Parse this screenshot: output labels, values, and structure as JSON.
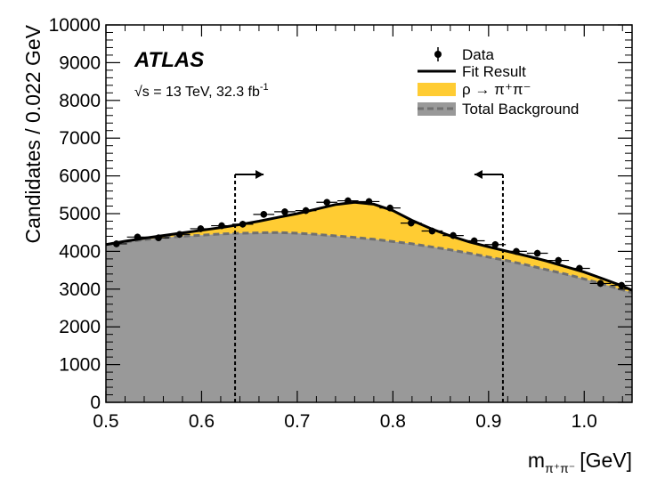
{
  "chart_data": {
    "type": "scatter",
    "experiment": "ATLAS",
    "energy_label": "√s = 13 TeV, 32.3 fb",
    "energy_label_sup": "-1",
    "xlabel_main": "m",
    "xlabel_sub": "π⁺π⁻",
    "xlabel_unit": "[GeV]",
    "ylabel": "Candidates / 0.022 GeV",
    "xlim": [
      0.5,
      1.05
    ],
    "ylim": [
      0,
      10000
    ],
    "xticks": [
      0.5,
      0.6,
      0.7,
      0.8,
      0.9,
      1.0
    ],
    "xtick_labels": [
      "0.5",
      "0.6",
      "0.7",
      "0.8",
      "0.9",
      "1.0"
    ],
    "yticks": [
      0,
      1000,
      2000,
      3000,
      4000,
      5000,
      6000,
      7000,
      8000,
      9000,
      10000
    ],
    "ytick_labels": [
      "0",
      "1000",
      "2000",
      "3000",
      "4000",
      "5000",
      "6000",
      "7000",
      "8000",
      "9000",
      "10000"
    ],
    "legend": {
      "placement": "top-right",
      "entries": [
        {
          "key": "data",
          "label": "Data"
        },
        {
          "key": "fit",
          "label": "Fit Result"
        },
        {
          "key": "signal",
          "label": "ρ → π⁺π⁻"
        },
        {
          "key": "bkg",
          "label": "Total Background"
        }
      ]
    },
    "colors": {
      "signal": "#ffcc33",
      "background": "#999999",
      "background_line": "#707070",
      "fit": "#000000",
      "data": "#000000"
    },
    "data_points": {
      "x": [
        0.511,
        0.533,
        0.555,
        0.577,
        0.599,
        0.621,
        0.643,
        0.665,
        0.687,
        0.709,
        0.731,
        0.753,
        0.775,
        0.797,
        0.819,
        0.841,
        0.863,
        0.885,
        0.907,
        0.929,
        0.951,
        0.973,
        0.995,
        1.017,
        1.039
      ],
      "y": [
        4200,
        4380,
        4360,
        4450,
        4600,
        4680,
        4720,
        4980,
        5050,
        5080,
        5300,
        5340,
        5320,
        5150,
        4750,
        4540,
        4420,
        4280,
        4180,
        4000,
        3950,
        3760,
        3550,
        3150,
        3100
      ],
      "xerr": 0.011,
      "yerr": 90
    },
    "fit_curve": {
      "x": [
        0.5,
        0.52,
        0.54,
        0.56,
        0.58,
        0.6,
        0.62,
        0.64,
        0.66,
        0.68,
        0.7,
        0.72,
        0.74,
        0.76,
        0.78,
        0.8,
        0.82,
        0.84,
        0.86,
        0.88,
        0.9,
        0.92,
        0.94,
        0.96,
        0.98,
        1.0,
        1.02,
        1.04,
        1.05
      ],
      "y": [
        4180,
        4270,
        4350,
        4420,
        4490,
        4560,
        4630,
        4710,
        4800,
        4900,
        5000,
        5120,
        5240,
        5300,
        5250,
        5080,
        4820,
        4600,
        4410,
        4250,
        4120,
        4000,
        3880,
        3750,
        3600,
        3450,
        3270,
        3080,
        2970
      ]
    },
    "background_curve": {
      "x": [
        0.5,
        0.52,
        0.54,
        0.56,
        0.58,
        0.6,
        0.62,
        0.64,
        0.66,
        0.68,
        0.7,
        0.72,
        0.74,
        0.76,
        0.78,
        0.8,
        0.82,
        0.84,
        0.86,
        0.88,
        0.9,
        0.92,
        0.94,
        0.96,
        0.98,
        1.0,
        1.02,
        1.04,
        1.05
      ],
      "y": [
        4180,
        4250,
        4310,
        4360,
        4400,
        4430,
        4460,
        4480,
        4490,
        4500,
        4480,
        4450,
        4410,
        4370,
        4320,
        4260,
        4200,
        4120,
        4040,
        3950,
        3850,
        3750,
        3640,
        3520,
        3400,
        3270,
        3130,
        2980,
        2900
      ]
    },
    "selection_window": [
      0.635,
      0.915
    ]
  }
}
